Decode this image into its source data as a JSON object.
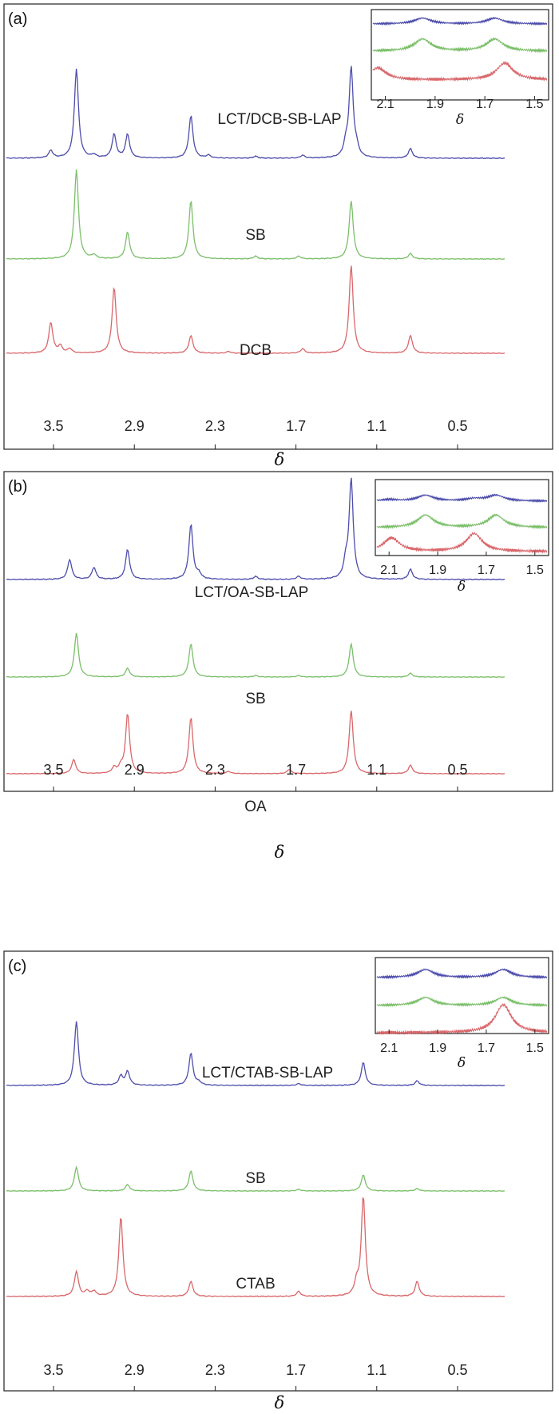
{
  "chart_data": [
    {
      "type": "line",
      "panel": "(a)",
      "xlabel": "δ",
      "xlim": [
        3.85,
        0.15
      ],
      "xticks": [
        3.5,
        2.9,
        2.3,
        1.7,
        1.1,
        0.5
      ],
      "tick_labels": [
        "3.5",
        "2.9",
        "2.3",
        "1.7",
        "1.1",
        "0.5"
      ],
      "series": [
        {
          "name": "LCT/DCB-SB-LAP",
          "color": "#4d4dac",
          "peaks": [
            [
              3.52,
              0.08
            ],
            [
              3.33,
              0.95
            ],
            [
              3.2,
              0.03
            ],
            [
              3.05,
              0.25
            ],
            [
              2.95,
              0.25
            ],
            [
              2.48,
              0.45
            ],
            [
              2.35,
              0.03
            ],
            [
              2.0,
              0.02
            ],
            [
              1.65,
              0.03
            ],
            [
              1.29,
              0.95
            ],
            [
              1.33,
              0.12
            ],
            [
              1.25,
              0.08
            ],
            [
              0.85,
              0.1
            ]
          ]
        },
        {
          "name": "SB",
          "color": "#7bbf6a",
          "peaks": [
            [
              3.33,
              1.0
            ],
            [
              3.2,
              0.04
            ],
            [
              2.95,
              0.3
            ],
            [
              2.48,
              0.65
            ],
            [
              2.0,
              0.03
            ],
            [
              1.68,
              0.03
            ],
            [
              1.29,
              0.65
            ],
            [
              0.85,
              0.06
            ]
          ]
        },
        {
          "name": "DCB",
          "color": "#d9676b",
          "peaks": [
            [
              3.52,
              0.35
            ],
            [
              3.45,
              0.08
            ],
            [
              3.38,
              0.05
            ],
            [
              3.05,
              0.75
            ],
            [
              2.48,
              0.2
            ],
            [
              2.2,
              0.02
            ],
            [
              1.65,
              0.05
            ],
            [
              1.29,
              1.0
            ],
            [
              0.85,
              0.2
            ]
          ]
        }
      ],
      "inset": {
        "xlabel": "δ",
        "xlim": [
          2.15,
          1.45
        ],
        "xticks": [
          2.1,
          1.9,
          1.7,
          1.5
        ],
        "tick_labels": [
          "2.1",
          "1.9",
          "1.7",
          "1.5"
        ],
        "series": [
          {
            "name": "LCT/DCB-SB-LAP",
            "peaks": [
              [
                1.95,
                0.4
              ],
              [
                1.66,
                0.4
              ]
            ]
          },
          {
            "name": "SB",
            "peaks": [
              [
                1.95,
                0.6
              ],
              [
                1.66,
                0.6
              ]
            ]
          },
          {
            "name": "DCB",
            "peaks": [
              [
                2.13,
                0.5
              ],
              [
                1.62,
                0.7
              ]
            ]
          }
        ]
      }
    },
    {
      "type": "line",
      "panel": "(b)",
      "xlabel": "δ",
      "xlim": [
        3.85,
        0.15
      ],
      "xticks": [
        3.5,
        2.9,
        2.3,
        1.7,
        1.1,
        0.5
      ],
      "tick_labels": [
        "3.5",
        "2.9",
        "2.3",
        "1.7",
        "1.1",
        "0.5"
      ],
      "series": [
        {
          "name": "LCT/OA-SB-LAP",
          "color": "#4d4dac",
          "peaks": [
            [
              3.38,
              0.2
            ],
            [
              3.2,
              0.12
            ],
            [
              2.95,
              0.3
            ],
            [
              2.48,
              0.55
            ],
            [
              2.42,
              0.05
            ],
            [
              2.0,
              0.03
            ],
            [
              1.68,
              0.03
            ],
            [
              1.29,
              1.0
            ],
            [
              1.33,
              0.15
            ],
            [
              0.85,
              0.1
            ]
          ]
        },
        {
          "name": "SB",
          "color": "#7bbf6a",
          "peaks": [
            [
              3.33,
              0.6
            ],
            [
              2.95,
              0.12
            ],
            [
              2.48,
              0.45
            ],
            [
              2.0,
              0.02
            ],
            [
              1.68,
              0.02
            ],
            [
              1.29,
              0.45
            ],
            [
              0.85,
              0.05
            ]
          ]
        },
        {
          "name": "OA",
          "color": "#d9676b",
          "peaks": [
            [
              3.35,
              0.2
            ],
            [
              3.05,
              0.08
            ],
            [
              3.0,
              0.08
            ],
            [
              2.95,
              0.85
            ],
            [
              2.48,
              0.8
            ],
            [
              2.2,
              0.03
            ],
            [
              1.75,
              0.06
            ],
            [
              1.29,
              0.9
            ],
            [
              0.85,
              0.12
            ]
          ]
        }
      ],
      "inset": {
        "xlabel": "δ",
        "xlim": [
          2.15,
          1.45
        ],
        "xticks": [
          2.1,
          1.9,
          1.7,
          1.5
        ],
        "tick_labels": [
          "2.1",
          "1.9",
          "1.7",
          "1.5"
        ],
        "series": [
          {
            "name": "LCT/OA-SB-LAP",
            "peaks": [
              [
                2.1,
                0.1
              ],
              [
                1.95,
                0.4
              ],
              [
                1.75,
                0.15
              ],
              [
                1.66,
                0.4
              ]
            ]
          },
          {
            "name": "SB",
            "peaks": [
              [
                1.95,
                0.7
              ],
              [
                1.66,
                0.7
              ]
            ]
          },
          {
            "name": "OA",
            "peaks": [
              [
                2.09,
                0.6
              ],
              [
                1.75,
                0.8
              ]
            ]
          }
        ]
      }
    },
    {
      "type": "line",
      "panel": "(c)",
      "xlabel": "δ",
      "xlim": [
        3.85,
        0.15
      ],
      "xticks": [
        3.5,
        2.9,
        2.3,
        1.7,
        1.1,
        0.5
      ],
      "tick_labels": [
        "3.5",
        "2.9",
        "2.3",
        "1.7",
        "1.1",
        "0.5"
      ],
      "series": [
        {
          "name": "LCT/CTAB-SB-LAP",
          "color": "#4d4dac",
          "peaks": [
            [
              3.33,
              0.7
            ],
            [
              3.0,
              0.1
            ],
            [
              2.95,
              0.15
            ],
            [
              2.48,
              0.35
            ],
            [
              2.42,
              0.03
            ],
            [
              1.68,
              0.02
            ],
            [
              1.2,
              0.25
            ],
            [
              0.8,
              0.05
            ]
          ]
        },
        {
          "name": "SB",
          "color": "#7bbf6a",
          "peaks": [
            [
              3.33,
              0.3
            ],
            [
              2.95,
              0.08
            ],
            [
              2.48,
              0.25
            ],
            [
              1.68,
              0.02
            ],
            [
              1.2,
              0.2
            ],
            [
              0.8,
              0.03
            ]
          ]
        },
        {
          "name": "CTAB",
          "color": "#d9676b",
          "peaks": [
            [
              3.33,
              0.25
            ],
            [
              3.25,
              0.05
            ],
            [
              3.2,
              0.05
            ],
            [
              3.0,
              0.8
            ],
            [
              2.48,
              0.15
            ],
            [
              1.68,
              0.05
            ],
            [
              1.2,
              1.0
            ],
            [
              1.25,
              0.12
            ],
            [
              0.8,
              0.15
            ]
          ]
        }
      ],
      "inset": {
        "xlabel": "δ",
        "xlim": [
          2.15,
          1.45
        ],
        "xticks": [
          2.1,
          1.9,
          1.7,
          1.5
        ],
        "tick_labels": [
          "2.1",
          "1.9",
          "1.7",
          "1.5"
        ],
        "series": [
          {
            "name": "LCT/CTAB-SB-LAP",
            "peaks": [
              [
                1.95,
                0.5
              ],
              [
                1.63,
                0.5
              ]
            ]
          },
          {
            "name": "SB",
            "peaks": [
              [
                1.95,
                0.5
              ],
              [
                1.63,
                0.5
              ]
            ]
          },
          {
            "name": "CTAB",
            "peaks": [
              [
                1.63,
                1.0
              ]
            ]
          }
        ]
      }
    }
  ]
}
